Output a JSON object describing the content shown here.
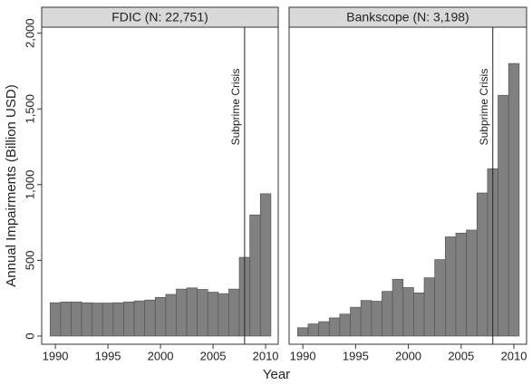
{
  "chart_data": [
    {
      "type": "bar",
      "title": "FDIC (N: 22,751)",
      "y_label": "Annual Impairments (Billion USD)",
      "x_label": "Year",
      "x": [
        1990,
        1991,
        1992,
        1993,
        1994,
        1995,
        1996,
        1997,
        1998,
        1999,
        2000,
        2001,
        2002,
        2003,
        2004,
        2005,
        2006,
        2007,
        2008,
        2009,
        2010
      ],
      "values": [
        220,
        225,
        225,
        220,
        218,
        218,
        220,
        225,
        232,
        238,
        255,
        275,
        310,
        318,
        308,
        290,
        280,
        310,
        520,
        800,
        940
      ],
      "color": "#808080",
      "xlim": [
        1988.7,
        2011.2
      ],
      "xticks": [
        1990,
        1995,
        2000,
        2005,
        2010
      ],
      "ylim": [
        -54,
        2040
      ],
      "yticks": [
        0,
        500,
        {
          "value": 1000,
          "label": "1,000"
        },
        {
          "value": 1500,
          "label": "1,500"
        },
        {
          "value": 2000,
          "label": "2,000"
        }
      ],
      "annotation": {
        "text": "Subprime Crisis",
        "x": 2008
      }
    },
    {
      "type": "bar",
      "title": "Bankscope (N: 3,198)",
      "x": [
        1990,
        1991,
        1992,
        1993,
        1994,
        1995,
        1996,
        1997,
        1998,
        1999,
        2000,
        2001,
        2002,
        2003,
        2004,
        2005,
        2006,
        2007,
        2008,
        2009,
        2010
      ],
      "values": [
        55,
        80,
        95,
        120,
        145,
        190,
        235,
        230,
        295,
        375,
        320,
        285,
        385,
        505,
        655,
        680,
        700,
        945,
        1105,
        1590,
        1800
      ],
      "color": "#808080",
      "xlim": [
        1988.7,
        2011.2
      ],
      "xticks": [
        1990,
        1995,
        2000,
        2005,
        2010
      ],
      "ylim": [
        -54,
        2040
      ],
      "annotation": {
        "text": "Subprime Crisis",
        "x": 2008
      }
    }
  ]
}
